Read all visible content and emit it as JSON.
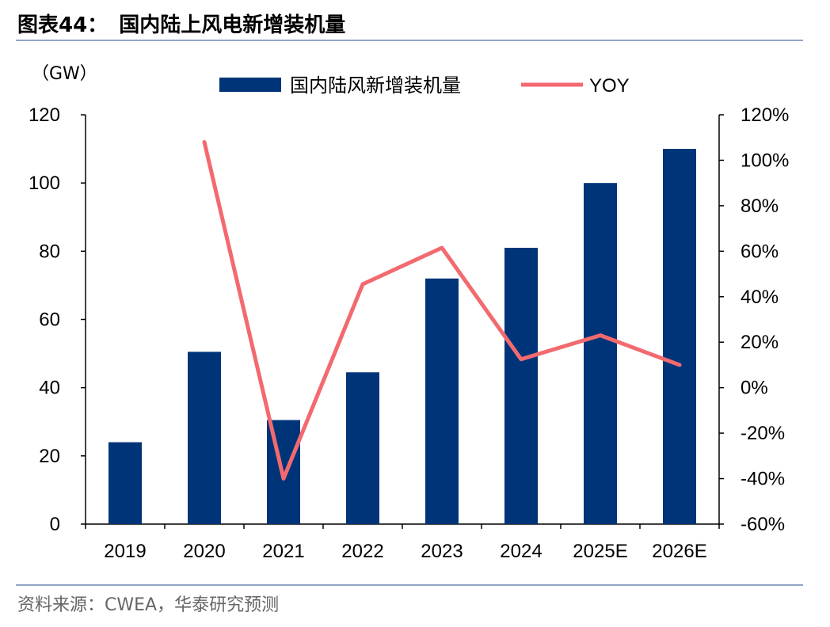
{
  "header": {
    "figure_label": "图表44：",
    "title": "国内陆上风电新增装机量"
  },
  "source": "资料来源：CWEA，华泰研究预测",
  "colors": {
    "bar": "#003478",
    "line": "#f26a6f",
    "rule": "#8fa4c4"
  },
  "chart_data": {
    "type": "bar+line",
    "unit_label": "（GW）",
    "categories": [
      "2019",
      "2020",
      "2021",
      "2022",
      "2023",
      "2024",
      "2025E",
      "2026E"
    ],
    "series": [
      {
        "name": "国内陆风新增装机量",
        "type": "bar",
        "axis": "left",
        "values": [
          24,
          50.5,
          30.5,
          44.5,
          72,
          81,
          100,
          110
        ]
      },
      {
        "name": "YOY",
        "type": "line",
        "axis": "right",
        "values": [
          null,
          1.08,
          -0.4,
          0.455,
          0.615,
          0.125,
          0.23,
          0.1
        ]
      }
    ],
    "y_left": {
      "range": [
        0,
        120
      ],
      "ticks": [
        "0",
        "20",
        "40",
        "60",
        "80",
        "100",
        "120"
      ]
    },
    "y_right": {
      "range": [
        -0.6,
        1.2
      ],
      "ticks": [
        "-60%",
        "-40%",
        "-20%",
        "0%",
        "20%",
        "40%",
        "60%",
        "80%",
        "100%",
        "120%"
      ]
    },
    "legend": "top-center",
    "grid": false
  }
}
